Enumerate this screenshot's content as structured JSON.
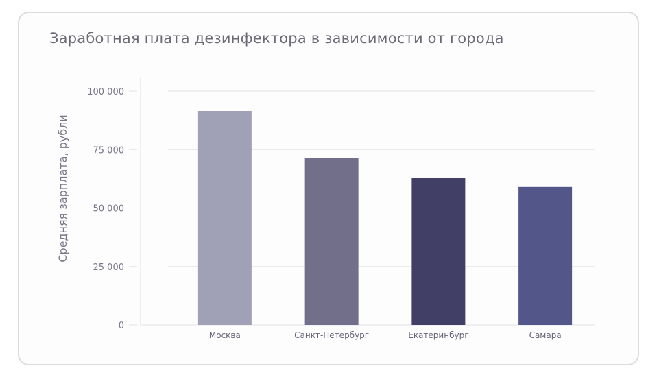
{
  "chart_data": {
    "type": "bar",
    "title": "Заработная плата дезинфектора в зависимости от города",
    "xlabel": "",
    "ylabel": "Средняя зарплата, рубли",
    "categories": [
      "Москва",
      "Санкт-Петербург",
      "Екатеринбург",
      "Самара"
    ],
    "values": [
      91500,
      71300,
      63000,
      59000
    ],
    "colors": [
      "#a0a0b6",
      "#716f8a",
      "#413f66",
      "#525689"
    ],
    "ylim": [
      0,
      100000
    ],
    "yticks": [
      0,
      25000,
      50000,
      75000,
      100000
    ],
    "ytick_labels": [
      "0",
      "25 000",
      "50 000",
      "75 000",
      "100 000"
    ],
    "grid": true,
    "legend": "none"
  }
}
